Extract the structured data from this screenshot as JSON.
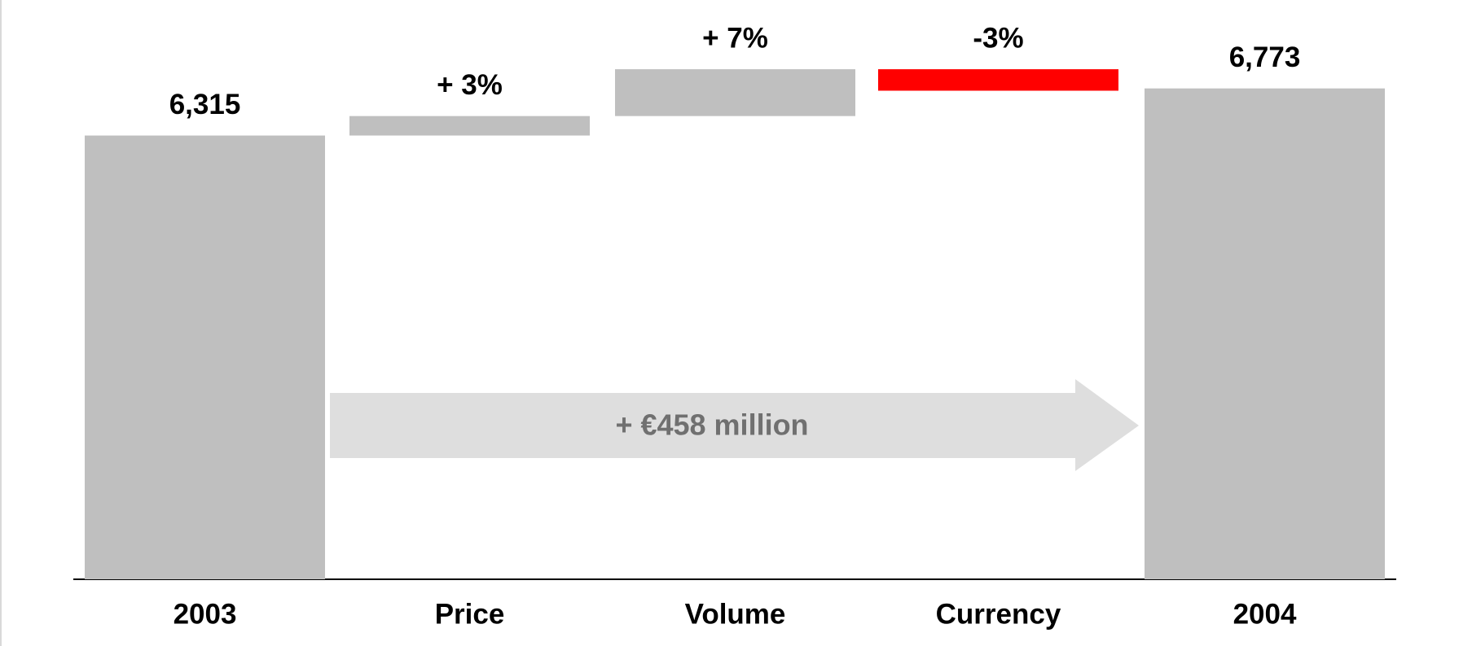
{
  "chart_data": {
    "type": "waterfall",
    "categories": [
      "2003",
      "Price",
      "Volume",
      "Currency",
      "2004"
    ],
    "measure": [
      "absolute",
      "percent",
      "percent",
      "percent",
      "absolute"
    ],
    "values": [
      6315,
      3,
      7,
      -3,
      6773
    ],
    "value_labels": [
      "6,315",
      "+ 3%",
      "+ 7%",
      "-3%",
      "6,773"
    ],
    "colors": {
      "total": "#bfbfbf",
      "increase": "#bfbfbf",
      "decrease": "#ff0000"
    },
    "ylim": [
      2000,
      7000
    ],
    "annotation": "+ €458 million"
  }
}
